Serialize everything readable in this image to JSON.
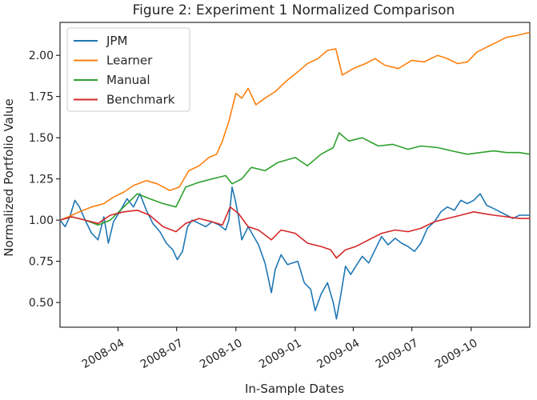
{
  "chart_data": {
    "type": "line",
    "title": "Figure 2: Experiment 1 Normalized Comparison",
    "xlabel": "In-Sample Dates",
    "ylabel": "Normalized Portfolio Value",
    "x_ticks": [
      "2008-04",
      "2008-07",
      "2008-10",
      "2009-01",
      "2009-04",
      "2009-07",
      "2009-10"
    ],
    "y_ticks": [
      "0.50",
      "0.75",
      "1.00",
      "1.25",
      "1.50",
      "1.75",
      "2.00"
    ],
    "xlim": [
      "2008-01-02",
      "2009-12-31"
    ],
    "ylim": [
      0.35,
      2.2
    ],
    "legend_position": "top-left",
    "grid": false,
    "series": [
      {
        "name": "JPM",
        "color": "#1f77b4",
        "points": [
          [
            "2008-01-02",
            1.0
          ],
          [
            "2008-01-10",
            0.96
          ],
          [
            "2008-01-18",
            1.03
          ],
          [
            "2008-01-25",
            1.12
          ],
          [
            "2008-02-01",
            1.08
          ],
          [
            "2008-02-10",
            1.0
          ],
          [
            "2008-02-20",
            0.92
          ],
          [
            "2008-03-01",
            0.88
          ],
          [
            "2008-03-10",
            1.02
          ],
          [
            "2008-03-17",
            0.86
          ],
          [
            "2008-03-25",
            0.99
          ],
          [
            "2008-04-05",
            1.06
          ],
          [
            "2008-04-15",
            1.13
          ],
          [
            "2008-04-25",
            1.08
          ],
          [
            "2008-05-05",
            1.16
          ],
          [
            "2008-05-15",
            1.06
          ],
          [
            "2008-05-25",
            0.98
          ],
          [
            "2008-06-05",
            0.93
          ],
          [
            "2008-06-15",
            0.86
          ],
          [
            "2008-06-25",
            0.82
          ],
          [
            "2008-07-02",
            0.76
          ],
          [
            "2008-07-10",
            0.81
          ],
          [
            "2008-07-18",
            0.96
          ],
          [
            "2008-07-25",
            1.0
          ],
          [
            "2008-08-05",
            0.98
          ],
          [
            "2008-08-15",
            0.96
          ],
          [
            "2008-08-25",
            0.99
          ],
          [
            "2008-09-05",
            0.97
          ],
          [
            "2008-09-15",
            0.94
          ],
          [
            "2008-09-20",
            1.0
          ],
          [
            "2008-09-25",
            1.2
          ],
          [
            "2008-09-30",
            1.12
          ],
          [
            "2008-10-05",
            1.02
          ],
          [
            "2008-10-10",
            0.88
          ],
          [
            "2008-10-20",
            0.96
          ],
          [
            "2008-11-05",
            0.85
          ],
          [
            "2008-11-15",
            0.74
          ],
          [
            "2008-11-25",
            0.56
          ],
          [
            "2008-12-01",
            0.7
          ],
          [
            "2008-12-10",
            0.79
          ],
          [
            "2008-12-20",
            0.73
          ],
          [
            "2009-01-05",
            0.75
          ],
          [
            "2009-01-15",
            0.62
          ],
          [
            "2009-01-25",
            0.58
          ],
          [
            "2009-02-01",
            0.45
          ],
          [
            "2009-02-10",
            0.55
          ],
          [
            "2009-02-20",
            0.62
          ],
          [
            "2009-03-01",
            0.5
          ],
          [
            "2009-03-06",
            0.4
          ],
          [
            "2009-03-12",
            0.53
          ],
          [
            "2009-03-20",
            0.72
          ],
          [
            "2009-03-28",
            0.67
          ],
          [
            "2009-04-05",
            0.72
          ],
          [
            "2009-04-15",
            0.78
          ],
          [
            "2009-04-25",
            0.74
          ],
          [
            "2009-05-05",
            0.82
          ],
          [
            "2009-05-15",
            0.9
          ],
          [
            "2009-05-25",
            0.85
          ],
          [
            "2009-06-05",
            0.89
          ],
          [
            "2009-06-15",
            0.86
          ],
          [
            "2009-06-25",
            0.84
          ],
          [
            "2009-07-05",
            0.81
          ],
          [
            "2009-07-15",
            0.86
          ],
          [
            "2009-07-25",
            0.95
          ],
          [
            "2009-08-05",
            0.99
          ],
          [
            "2009-08-15",
            1.05
          ],
          [
            "2009-08-25",
            1.08
          ],
          [
            "2009-09-05",
            1.06
          ],
          [
            "2009-09-15",
            1.12
          ],
          [
            "2009-09-25",
            1.1
          ],
          [
            "2009-10-05",
            1.12
          ],
          [
            "2009-10-15",
            1.16
          ],
          [
            "2009-10-25",
            1.09
          ],
          [
            "2009-11-05",
            1.07
          ],
          [
            "2009-11-15",
            1.05
          ],
          [
            "2009-11-25",
            1.03
          ],
          [
            "2009-12-05",
            1.01
          ],
          [
            "2009-12-15",
            1.03
          ],
          [
            "2009-12-31",
            1.03
          ]
        ]
      },
      {
        "name": "Learner",
        "color": "#ff7f0e",
        "points": [
          [
            "2008-01-02",
            1.0
          ],
          [
            "2008-01-15",
            1.02
          ],
          [
            "2008-02-01",
            1.05
          ],
          [
            "2008-02-20",
            1.08
          ],
          [
            "2008-03-10",
            1.1
          ],
          [
            "2008-03-25",
            1.14
          ],
          [
            "2008-04-10",
            1.17
          ],
          [
            "2008-04-25",
            1.21
          ],
          [
            "2008-05-15",
            1.24
          ],
          [
            "2008-06-01",
            1.22
          ],
          [
            "2008-06-20",
            1.18
          ],
          [
            "2008-07-05",
            1.2
          ],
          [
            "2008-07-20",
            1.3
          ],
          [
            "2008-08-05",
            1.33
          ],
          [
            "2008-08-20",
            1.38
          ],
          [
            "2008-09-01",
            1.4
          ],
          [
            "2008-09-10",
            1.48
          ],
          [
            "2008-09-20",
            1.6
          ],
          [
            "2008-10-01",
            1.77
          ],
          [
            "2008-10-10",
            1.74
          ],
          [
            "2008-10-20",
            1.8
          ],
          [
            "2008-11-01",
            1.7
          ],
          [
            "2008-11-15",
            1.74
          ],
          [
            "2008-12-01",
            1.78
          ],
          [
            "2008-12-20",
            1.85
          ],
          [
            "2009-01-05",
            1.9
          ],
          [
            "2009-01-20",
            1.95
          ],
          [
            "2009-02-05",
            1.98
          ],
          [
            "2009-02-20",
            2.03
          ],
          [
            "2009-03-05",
            2.04
          ],
          [
            "2009-03-15",
            1.88
          ],
          [
            "2009-04-01",
            1.92
          ],
          [
            "2009-04-20",
            1.95
          ],
          [
            "2009-05-05",
            1.98
          ],
          [
            "2009-05-20",
            1.94
          ],
          [
            "2009-06-10",
            1.92
          ],
          [
            "2009-07-01",
            1.97
          ],
          [
            "2009-07-20",
            1.96
          ],
          [
            "2009-08-10",
            2.0
          ],
          [
            "2009-08-25",
            1.98
          ],
          [
            "2009-09-10",
            1.95
          ],
          [
            "2009-09-25",
            1.96
          ],
          [
            "2009-10-10",
            2.02
          ],
          [
            "2009-10-25",
            2.05
          ],
          [
            "2009-11-10",
            2.08
          ],
          [
            "2009-11-25",
            2.11
          ],
          [
            "2009-12-10",
            2.12
          ],
          [
            "2009-12-31",
            2.14
          ]
        ]
      },
      {
        "name": "Manual",
        "color": "#2ca02c",
        "points": [
          [
            "2008-01-02",
            1.0
          ],
          [
            "2008-01-20",
            1.02
          ],
          [
            "2008-02-10",
            1.0
          ],
          [
            "2008-03-01",
            0.97
          ],
          [
            "2008-03-20",
            1.0
          ],
          [
            "2008-04-10",
            1.08
          ],
          [
            "2008-05-01",
            1.16
          ],
          [
            "2008-05-20",
            1.13
          ],
          [
            "2008-06-10",
            1.1
          ],
          [
            "2008-06-30",
            1.08
          ],
          [
            "2008-07-15",
            1.2
          ],
          [
            "2008-08-05",
            1.23
          ],
          [
            "2008-08-25",
            1.25
          ],
          [
            "2008-09-15",
            1.27
          ],
          [
            "2008-09-25",
            1.22
          ],
          [
            "2008-10-10",
            1.25
          ],
          [
            "2008-10-25",
            1.32
          ],
          [
            "2008-11-15",
            1.3
          ],
          [
            "2008-12-05",
            1.35
          ],
          [
            "2009-01-01",
            1.38
          ],
          [
            "2009-01-20",
            1.33
          ],
          [
            "2009-02-10",
            1.4
          ],
          [
            "2009-03-01",
            1.44
          ],
          [
            "2009-03-10",
            1.53
          ],
          [
            "2009-03-25",
            1.48
          ],
          [
            "2009-04-15",
            1.5
          ],
          [
            "2009-05-10",
            1.45
          ],
          [
            "2009-06-01",
            1.46
          ],
          [
            "2009-06-25",
            1.43
          ],
          [
            "2009-07-15",
            1.45
          ],
          [
            "2009-08-10",
            1.44
          ],
          [
            "2009-09-01",
            1.42
          ],
          [
            "2009-09-25",
            1.4
          ],
          [
            "2009-10-15",
            1.41
          ],
          [
            "2009-11-05",
            1.42
          ],
          [
            "2009-11-25",
            1.41
          ],
          [
            "2009-12-15",
            1.41
          ],
          [
            "2009-12-31",
            1.4
          ]
        ]
      },
      {
        "name": "Benchmark",
        "color": "#d62728",
        "points": [
          [
            "2008-01-02",
            1.0
          ],
          [
            "2008-01-20",
            1.02
          ],
          [
            "2008-02-10",
            1.0
          ],
          [
            "2008-03-01",
            0.98
          ],
          [
            "2008-03-20",
            1.03
          ],
          [
            "2008-04-10",
            1.05
          ],
          [
            "2008-05-01",
            1.06
          ],
          [
            "2008-05-20",
            1.03
          ],
          [
            "2008-06-10",
            0.96
          ],
          [
            "2008-06-30",
            0.93
          ],
          [
            "2008-07-15",
            0.98
          ],
          [
            "2008-08-05",
            1.01
          ],
          [
            "2008-08-25",
            0.99
          ],
          [
            "2008-09-10",
            0.97
          ],
          [
            "2008-09-22",
            1.08
          ],
          [
            "2008-10-05",
            1.04
          ],
          [
            "2008-10-20",
            0.96
          ],
          [
            "2008-11-05",
            0.94
          ],
          [
            "2008-11-25",
            0.88
          ],
          [
            "2008-12-10",
            0.94
          ],
          [
            "2009-01-01",
            0.92
          ],
          [
            "2009-01-20",
            0.86
          ],
          [
            "2009-02-10",
            0.84
          ],
          [
            "2009-02-25",
            0.82
          ],
          [
            "2009-03-06",
            0.77
          ],
          [
            "2009-03-20",
            0.82
          ],
          [
            "2009-04-05",
            0.84
          ],
          [
            "2009-04-25",
            0.88
          ],
          [
            "2009-05-15",
            0.92
          ],
          [
            "2009-06-05",
            0.94
          ],
          [
            "2009-06-25",
            0.93
          ],
          [
            "2009-07-15",
            0.95
          ],
          [
            "2009-08-05",
            0.99
          ],
          [
            "2009-08-25",
            1.01
          ],
          [
            "2009-09-15",
            1.03
          ],
          [
            "2009-10-05",
            1.05
          ],
          [
            "2009-10-20",
            1.04
          ],
          [
            "2009-11-05",
            1.03
          ],
          [
            "2009-11-25",
            1.02
          ],
          [
            "2009-12-15",
            1.01
          ],
          [
            "2009-12-31",
            1.01
          ]
        ]
      }
    ]
  }
}
